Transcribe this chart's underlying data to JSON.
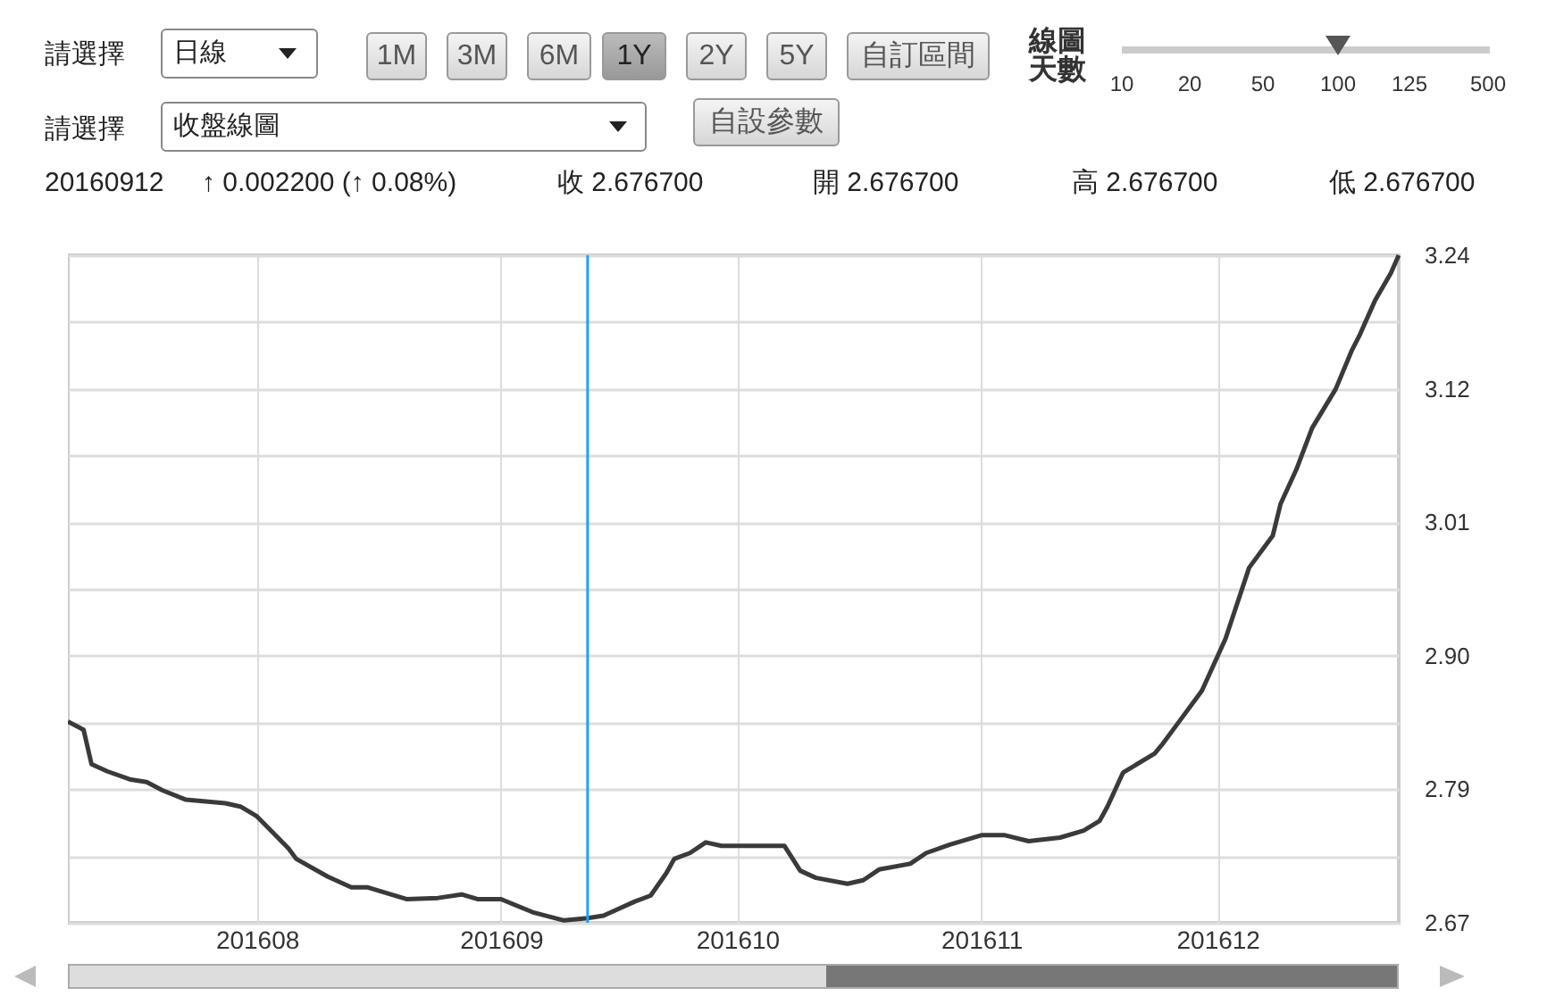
{
  "chart_data": {
    "type": "line",
    "annotations": [
      "請選擇",
      "日線",
      "1M",
      "3M",
      "6M",
      "1Y",
      "2Y",
      "5Y",
      "自訂區間",
      "線圖天數",
      "10",
      "20",
      "50",
      "100",
      "125",
      "500",
      "請選擇",
      "收盤線圖",
      "自設參數",
      "20160912",
      "↑ 0.002200 (↑ 0.08%)",
      "收 2.676700",
      "開 2.676700",
      "高 2.676700",
      "低 2.676700"
    ],
    "x": [
      "2016-07-08",
      "2016-07-10",
      "2016-07-11",
      "2016-07-13",
      "2016-07-16",
      "2016-07-18",
      "2016-07-20",
      "2016-07-23",
      "2016-07-28",
      "2016-07-30",
      "2016-08-01",
      "2016-08-05",
      "2016-08-06",
      "2016-08-10",
      "2016-08-13",
      "2016-08-15",
      "2016-08-20",
      "2016-08-24",
      "2016-08-27",
      "2016-08-29",
      "2016-09-01",
      "2016-09-05",
      "2016-09-09",
      "2016-09-12",
      "2016-09-14",
      "2016-09-18",
      "2016-09-20",
      "2016-09-22",
      "2016-09-23",
      "2016-09-25",
      "2016-09-27",
      "2016-09-29",
      "2016-10-07",
      "2016-10-09",
      "2016-10-11",
      "2016-10-15",
      "2016-10-17",
      "2016-10-19",
      "2016-10-23",
      "2016-10-25",
      "2016-10-28",
      "2016-11-01",
      "2016-11-04",
      "2016-11-07",
      "2016-11-11",
      "2016-11-14",
      "2016-11-16",
      "2016-11-17",
      "2016-11-19",
      "2016-11-23",
      "2016-11-24",
      "2016-11-26",
      "2016-11-29",
      "2016-12-02",
      "2016-12-05",
      "2016-12-08",
      "2016-12-09",
      "2016-12-11",
      "2016-12-13",
      "2016-12-16",
      "2016-12-18",
      "2016-12-19",
      "2016-12-21",
      "2016-12-23",
      "2016-12-24"
    ],
    "series": [
      {
        "color": "#3a3a3a",
        "values": [
          2.843,
          2.836,
          2.807,
          2.801,
          2.794,
          2.792,
          2.785,
          2.777,
          2.774,
          2.771,
          2.763,
          2.736,
          2.727,
          2.712,
          2.703,
          2.703,
          2.693,
          2.694,
          2.697,
          2.693,
          2.693,
          2.682,
          2.675,
          2.677,
          2.679,
          2.691,
          2.696,
          2.715,
          2.727,
          2.732,
          2.741,
          2.738,
          2.738,
          2.717,
          2.711,
          2.706,
          2.709,
          2.718,
          2.723,
          2.732,
          2.739,
          2.747,
          2.747,
          2.742,
          2.745,
          2.751,
          2.759,
          2.771,
          2.8,
          2.816,
          2.824,
          2.842,
          2.869,
          2.913,
          2.973,
          3.0,
          3.027,
          3.056,
          3.091,
          3.124,
          3.156,
          3.169,
          3.199,
          3.222,
          3.237
        ]
      }
    ],
    "xlim": [
      "2016-07-08",
      "2016-12-24"
    ],
    "xticks": [
      {
        "value": "2016-08",
        "label": "201608"
      },
      {
        "value": "2016-09",
        "label": "201609"
      },
      {
        "value": "2016-10",
        "label": "201610"
      },
      {
        "value": "2016-11",
        "label": "201611"
      },
      {
        "value": "2016-12",
        "label": "201612"
      }
    ],
    "ylim": [
      2.673,
      3.237
    ],
    "yticks": [
      {
        "value": 2.673,
        "label": "2.67"
      },
      {
        "value": 2.7294,
        "label": null
      },
      {
        "value": 2.7858,
        "label": "2.79"
      },
      {
        "value": 2.8422,
        "label": null
      },
      {
        "value": 2.8986,
        "label": "2.90"
      },
      {
        "value": 2.955,
        "label": null
      },
      {
        "value": 3.0114,
        "label": "3.01"
      },
      {
        "value": 3.0678,
        "label": null
      },
      {
        "value": 3.1242,
        "label": "3.12"
      },
      {
        "value": 3.1806,
        "label": null
      },
      {
        "value": 3.237,
        "label": "3.24"
      }
    ],
    "ref_lines": [
      {
        "axis": "x",
        "value": "2016-09-12",
        "color": "#1ea0ff"
      }
    ],
    "grid": true,
    "marker": "none",
    "line_style": "solid"
  }
}
